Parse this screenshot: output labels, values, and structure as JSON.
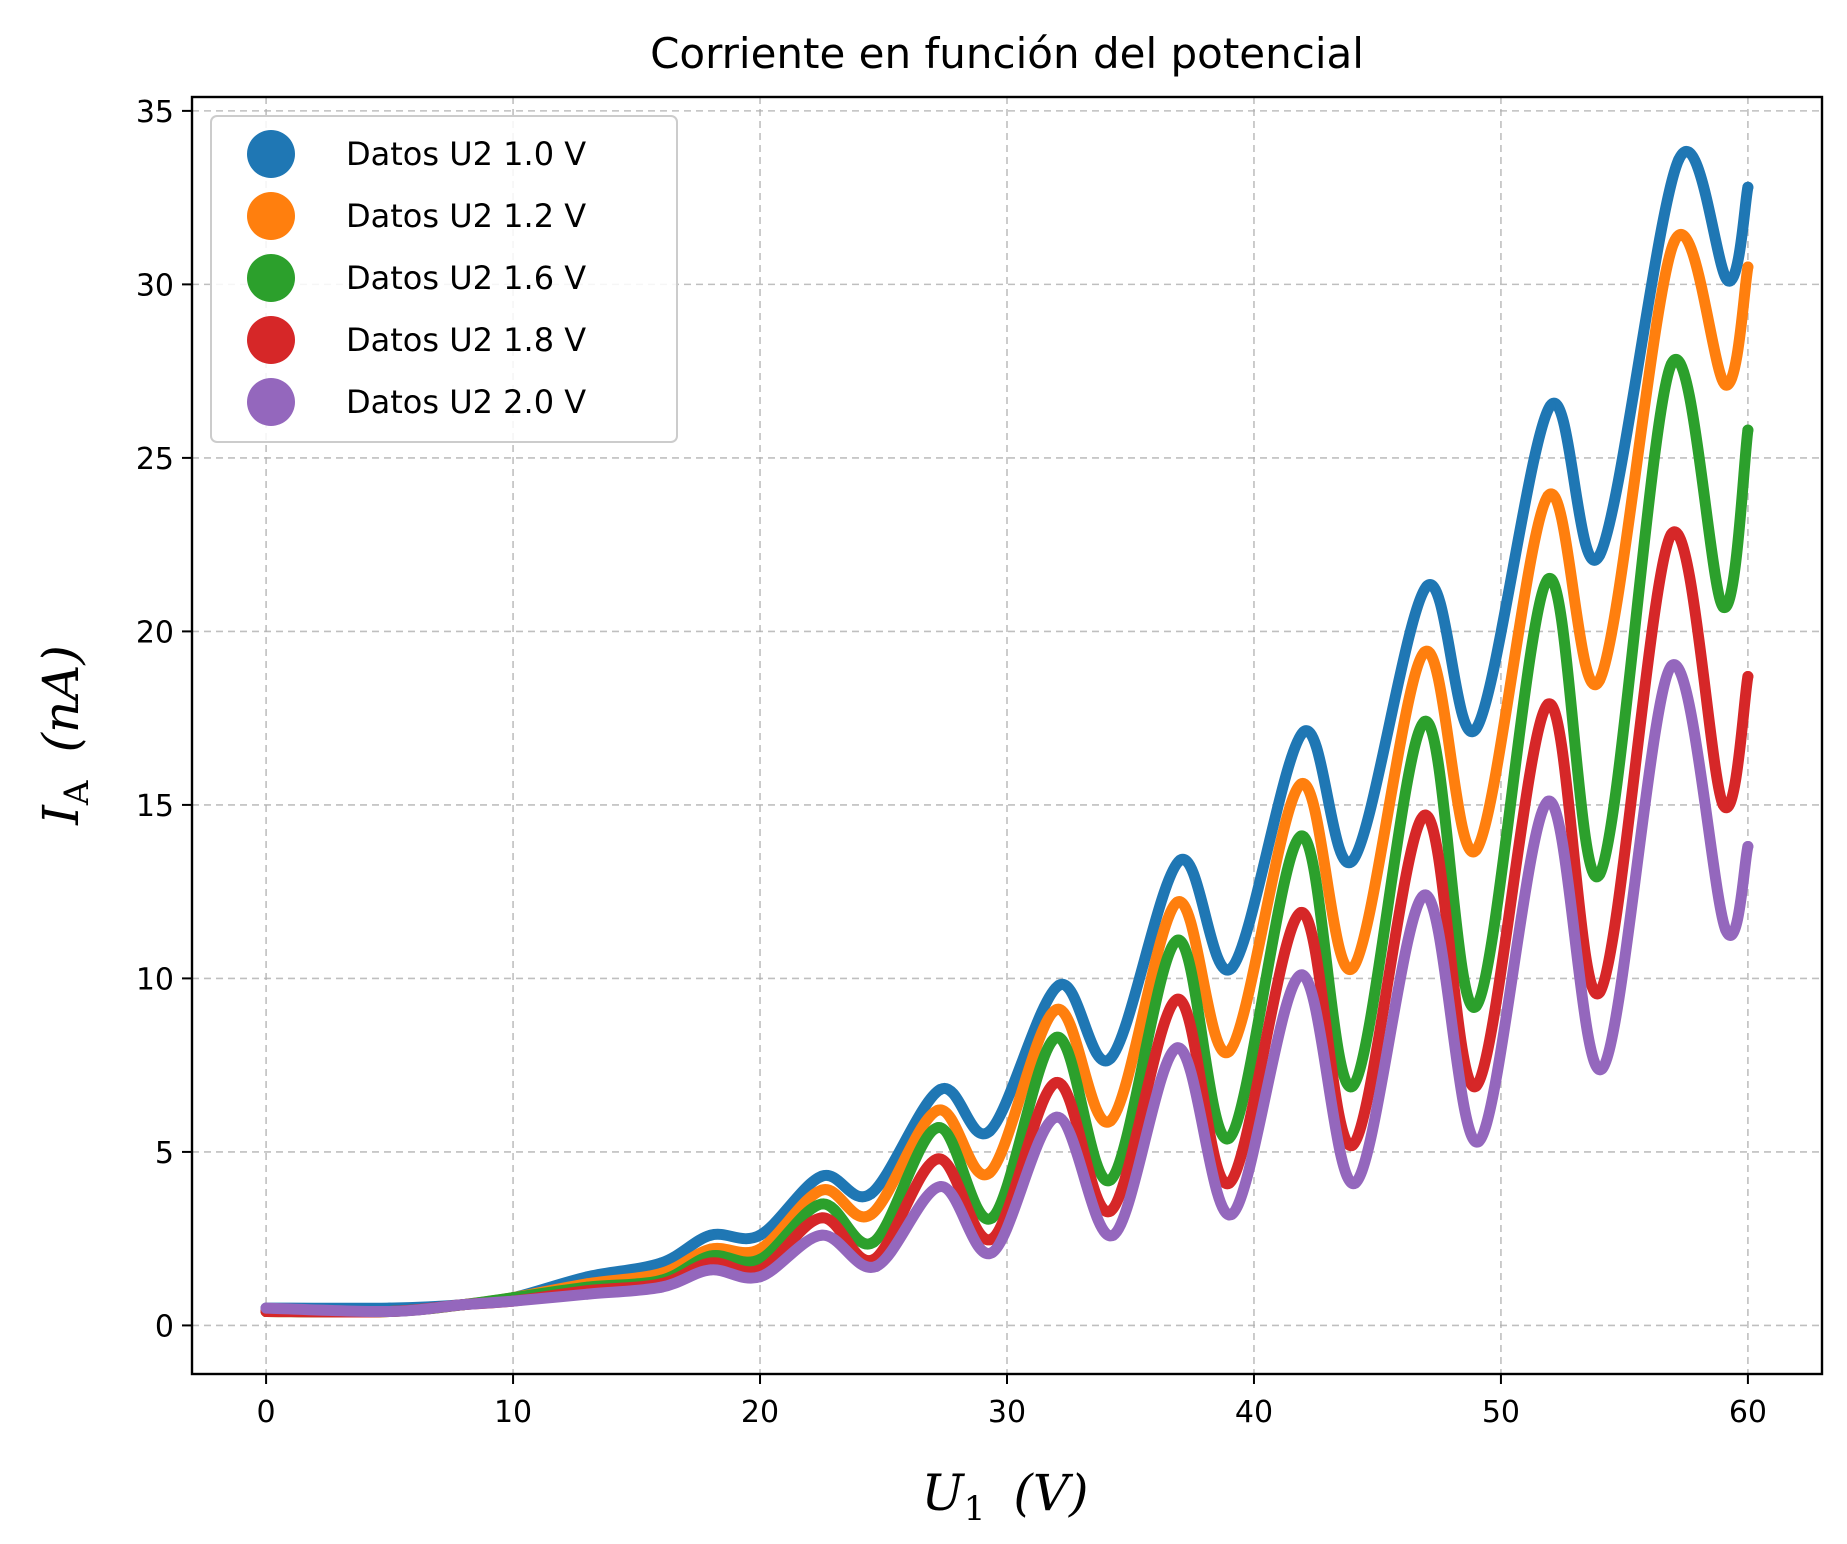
{
  "chart_data": {
    "type": "scatter",
    "title": "Corriente en función del potencial",
    "xlabel": {
      "main": "U",
      "sub": "1",
      "unit": "(V)"
    },
    "ylabel": {
      "main": "I",
      "sub": "A",
      "unit": "(nA)"
    },
    "xlim": [
      -3,
      63
    ],
    "ylim": [
      -1.4,
      35.4
    ],
    "xticks": [
      0,
      10,
      20,
      30,
      40,
      50,
      60
    ],
    "yticks": [
      0,
      5,
      10,
      15,
      20,
      25,
      30,
      35
    ],
    "grid": true,
    "legend_position": "upper-left",
    "series": [
      {
        "name": "Datos U2 1.0 V",
        "color": "#1f77b4",
        "points": [
          [
            0,
            0.5
          ],
          [
            5,
            0.5
          ],
          [
            8,
            0.6
          ],
          [
            10,
            0.8
          ],
          [
            13,
            1.4
          ],
          [
            16,
            1.8
          ],
          [
            18,
            2.6
          ],
          [
            20,
            2.6
          ],
          [
            22.5,
            4.3
          ],
          [
            24.5,
            3.8
          ],
          [
            27.3,
            6.8
          ],
          [
            29.3,
            5.6
          ],
          [
            32.1,
            9.8
          ],
          [
            34.2,
            7.7
          ],
          [
            37,
            13.4
          ],
          [
            39.1,
            10.3
          ],
          [
            42,
            17.1
          ],
          [
            44,
            13.4
          ],
          [
            47,
            21.3
          ],
          [
            49,
            17.2
          ],
          [
            52,
            26.5
          ],
          [
            54,
            22.2
          ],
          [
            57.2,
            33.6
          ],
          [
            59.2,
            30.1
          ],
          [
            60,
            32.8
          ]
        ]
      },
      {
        "name": "Datos U2 1.2 V",
        "color": "#ff7f0e",
        "points": [
          [
            0,
            0.4
          ],
          [
            5,
            0.4
          ],
          [
            8,
            0.6
          ],
          [
            10,
            0.8
          ],
          [
            13,
            1.2
          ],
          [
            16,
            1.5
          ],
          [
            18,
            2.2
          ],
          [
            20,
            2.2
          ],
          [
            22.5,
            3.9
          ],
          [
            24.5,
            3.2
          ],
          [
            27.2,
            6.2
          ],
          [
            29.3,
            4.4
          ],
          [
            32,
            9.1
          ],
          [
            34.2,
            5.9
          ],
          [
            36.9,
            12.2
          ],
          [
            39,
            7.9
          ],
          [
            41.9,
            15.6
          ],
          [
            44,
            10.3
          ],
          [
            46.9,
            19.4
          ],
          [
            49,
            13.7
          ],
          [
            51.9,
            23.9
          ],
          [
            54,
            18.6
          ],
          [
            57,
            31.2
          ],
          [
            59.1,
            27.1
          ],
          [
            60,
            30.5
          ]
        ]
      },
      {
        "name": "Datos U2 1.6 V",
        "color": "#2ca02c",
        "points": [
          [
            0,
            0.4
          ],
          [
            5,
            0.4
          ],
          [
            8,
            0.6
          ],
          [
            10,
            0.8
          ],
          [
            13,
            1.1
          ],
          [
            16,
            1.3
          ],
          [
            18,
            2.0
          ],
          [
            20,
            1.9
          ],
          [
            22.5,
            3.5
          ],
          [
            24.6,
            2.4
          ],
          [
            27.2,
            5.7
          ],
          [
            29.4,
            3.1
          ],
          [
            32,
            8.3
          ],
          [
            34.2,
            4.2
          ],
          [
            36.9,
            11.1
          ],
          [
            39,
            5.4
          ],
          [
            41.9,
            14.1
          ],
          [
            44,
            6.9
          ],
          [
            46.9,
            17.4
          ],
          [
            49,
            9.2
          ],
          [
            51.9,
            21.5
          ],
          [
            54,
            13.0
          ],
          [
            56.9,
            27.7
          ],
          [
            59,
            20.7
          ],
          [
            60,
            25.8
          ]
        ]
      },
      {
        "name": "Datos U2 1.8 V",
        "color": "#d62728",
        "points": [
          [
            0,
            0.4
          ],
          [
            5,
            0.4
          ],
          [
            8,
            0.6
          ],
          [
            10,
            0.7
          ],
          [
            13,
            1.0
          ],
          [
            16,
            1.2
          ],
          [
            18,
            1.8
          ],
          [
            20,
            1.6
          ],
          [
            22.5,
            3.1
          ],
          [
            24.6,
            1.9
          ],
          [
            27.2,
            4.8
          ],
          [
            29.4,
            2.5
          ],
          [
            32,
            7.0
          ],
          [
            34.2,
            3.3
          ],
          [
            36.9,
            9.4
          ],
          [
            39,
            4.1
          ],
          [
            41.9,
            11.9
          ],
          [
            44,
            5.2
          ],
          [
            46.9,
            14.7
          ],
          [
            49,
            6.9
          ],
          [
            51.9,
            17.9
          ],
          [
            54,
            9.6
          ],
          [
            56.9,
            22.8
          ],
          [
            59,
            15.0
          ],
          [
            60,
            18.7
          ]
        ]
      },
      {
        "name": "Datos U2 2.0 V",
        "color": "#9467bd",
        "points": [
          [
            0,
            0.5
          ],
          [
            5,
            0.4
          ],
          [
            8,
            0.6
          ],
          [
            10,
            0.7
          ],
          [
            13,
            0.9
          ],
          [
            16,
            1.1
          ],
          [
            18,
            1.6
          ],
          [
            20,
            1.4
          ],
          [
            22.5,
            2.6
          ],
          [
            24.7,
            1.7
          ],
          [
            27.3,
            4.0
          ],
          [
            29.4,
            2.1
          ],
          [
            32,
            6.0
          ],
          [
            34.3,
            2.6
          ],
          [
            36.9,
            8.0
          ],
          [
            39.1,
            3.2
          ],
          [
            41.9,
            10.1
          ],
          [
            44.1,
            4.1
          ],
          [
            46.9,
            12.4
          ],
          [
            49.1,
            5.3
          ],
          [
            51.9,
            15.1
          ],
          [
            54.1,
            7.4
          ],
          [
            56.9,
            19.0
          ],
          [
            59.1,
            11.4
          ],
          [
            60,
            13.8
          ]
        ]
      }
    ]
  }
}
